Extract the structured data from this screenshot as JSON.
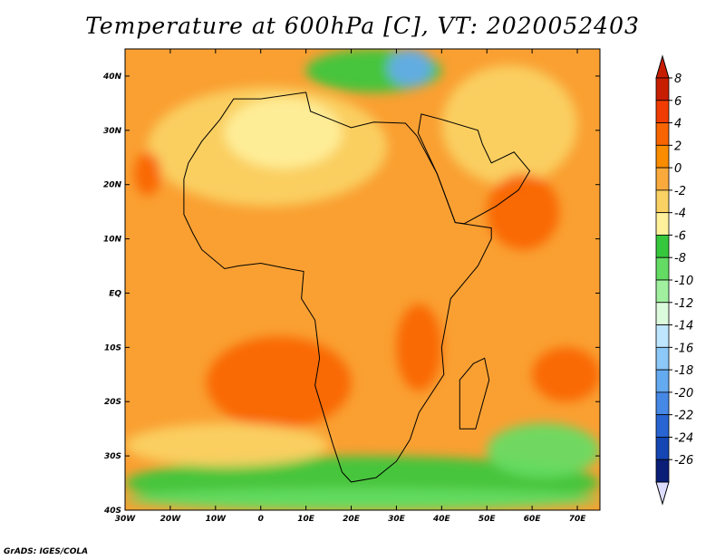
{
  "title": "Temperature at 600hPa [C], VT: 2020052403",
  "credit": "GrADS: IGES/COLA",
  "map": {
    "lon_range": [
      -30,
      75
    ],
    "lat_range": [
      -40,
      45
    ],
    "x_ticks": [
      {
        "lon": -30,
        "label": "30W"
      },
      {
        "lon": -20,
        "label": "20W"
      },
      {
        "lon": -10,
        "label": "10W"
      },
      {
        "lon": 0,
        "label": "0"
      },
      {
        "lon": 10,
        "label": "10E"
      },
      {
        "lon": 20,
        "label": "20E"
      },
      {
        "lon": 30,
        "label": "30E"
      },
      {
        "lon": 40,
        "label": "40E"
      },
      {
        "lon": 50,
        "label": "50E"
      },
      {
        "lon": 60,
        "label": "60E"
      },
      {
        "lon": 70,
        "label": "70E"
      }
    ],
    "y_ticks": [
      {
        "lat": 40,
        "label": "40N"
      },
      {
        "lat": 30,
        "label": "30N"
      },
      {
        "lat": 20,
        "label": "20N"
      },
      {
        "lat": 10,
        "label": "10N"
      },
      {
        "lat": 0,
        "label": "EQ"
      },
      {
        "lat": -10,
        "label": "10S"
      },
      {
        "lat": -20,
        "label": "20S"
      },
      {
        "lat": -30,
        "label": "30S"
      },
      {
        "lat": -40,
        "label": "40S"
      }
    ]
  },
  "colorbar": {
    "labels": [
      "8",
      "6",
      "4",
      "2",
      "0",
      "-2",
      "-4",
      "-6",
      "-8",
      "-10",
      "-12",
      "-14",
      "-16",
      "-18",
      "-20",
      "-22",
      "-24",
      "-26"
    ],
    "colors": [
      "#c81e00",
      "#f03c00",
      "#f86400",
      "#fa8c00",
      "#faaa3c",
      "#fad264",
      "#fff09c",
      "#36c83c",
      "#64dc64",
      "#a0f0a0",
      "#dcfadc",
      "#bee6ff",
      "#8cc8f8",
      "#64aaf0",
      "#4688e6",
      "#2864d2",
      "#1446b4",
      "#0a1e78"
    ],
    "top_arrow_color": "#c81e00",
    "bottom_arrow_color": "#dcdcff"
  },
  "fields": {
    "base_color": "#faa032",
    "zones": [
      {
        "name": "north-africa-cool",
        "color": "#fad264",
        "lon": [
          -25,
          28
        ],
        "lat": [
          16,
          38
        ]
      },
      {
        "name": "sahara-core",
        "color": "#fff09c",
        "lon": [
          -8,
          18
        ],
        "lat": [
          23,
          36
        ]
      },
      {
        "name": "arabia",
        "color": "#fad264",
        "lon": [
          40,
          70
        ],
        "lat": [
          20,
          42
        ]
      },
      {
        "name": "warm-arabian-sea",
        "color": "#f86400",
        "lon": [
          50,
          66
        ],
        "lat": [
          8,
          22
        ]
      },
      {
        "name": "warm-west-sahara",
        "color": "#f86400",
        "lon": [
          -28,
          -22
        ],
        "lat": [
          18,
          26
        ]
      },
      {
        "name": "warm-south-atlantic",
        "color": "#f86400",
        "lon": [
          -12,
          20
        ],
        "lat": [
          -25,
          -8
        ]
      },
      {
        "name": "warm-south-india-ocean",
        "color": "#f86400",
        "lon": [
          60,
          75
        ],
        "lat": [
          -20,
          -10
        ]
      },
      {
        "name": "warm-east-africa",
        "color": "#f86400",
        "lon": [
          30,
          40
        ],
        "lat": [
          -18,
          -2
        ]
      },
      {
        "name": "mediterranean-cool",
        "color": "#36c83c",
        "lon": [
          10,
          40
        ],
        "lat": [
          37,
          45
        ]
      },
      {
        "name": "mediterranean-cold",
        "color": "#64aaf0",
        "lon": [
          28,
          38
        ],
        "lat": [
          38,
          45
        ]
      },
      {
        "name": "south-cool-band",
        "color": "#36c83c",
        "lon": [
          -30,
          75
        ],
        "lat": [
          -40,
          -30
        ]
      },
      {
        "name": "south-cooler-band",
        "color": "#64dc64",
        "lon": [
          -30,
          75
        ],
        "lat": [
          -40,
          -36
        ]
      },
      {
        "name": "south-indian-green",
        "color": "#64dc64",
        "lon": [
          50,
          75
        ],
        "lat": [
          -34,
          -24
        ]
      },
      {
        "name": "south-atlantic-cool",
        "color": "#fad264",
        "lon": [
          -30,
          15
        ],
        "lat": [
          -32,
          -24
        ]
      }
    ]
  }
}
